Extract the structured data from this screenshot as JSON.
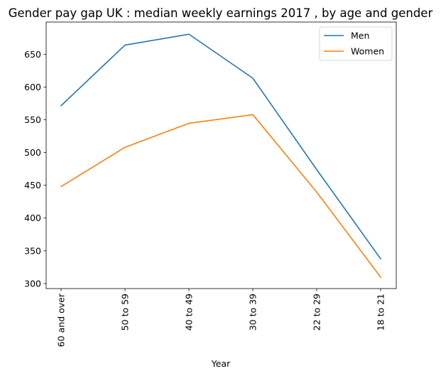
{
  "chart_data": {
    "type": "line",
    "title": "Gender pay gap UK : median weekly earnings 2017 , by age and gender",
    "xlabel": "Year",
    "ylabel": "",
    "categories": [
      "60 and over",
      "50 to 59",
      "40 to 49",
      "30 to 39",
      "22 to 29",
      "18 to 21"
    ],
    "series": [
      {
        "name": "Men",
        "color": "#1f77b4",
        "values": [
          571.5,
          664.0,
          680.6,
          613.5,
          473.9,
          337.7
        ]
      },
      {
        "name": "Women",
        "color": "#ff7f0e",
        "values": [
          448.1,
          508.0,
          544.6,
          557.8,
          439.5,
          309.7
        ]
      }
    ],
    "ylim": [
      292.3,
      699.2
    ],
    "yticks": [
      300,
      350,
      400,
      450,
      500,
      550,
      600,
      650
    ],
    "grid": false,
    "legend": "top-right"
  }
}
